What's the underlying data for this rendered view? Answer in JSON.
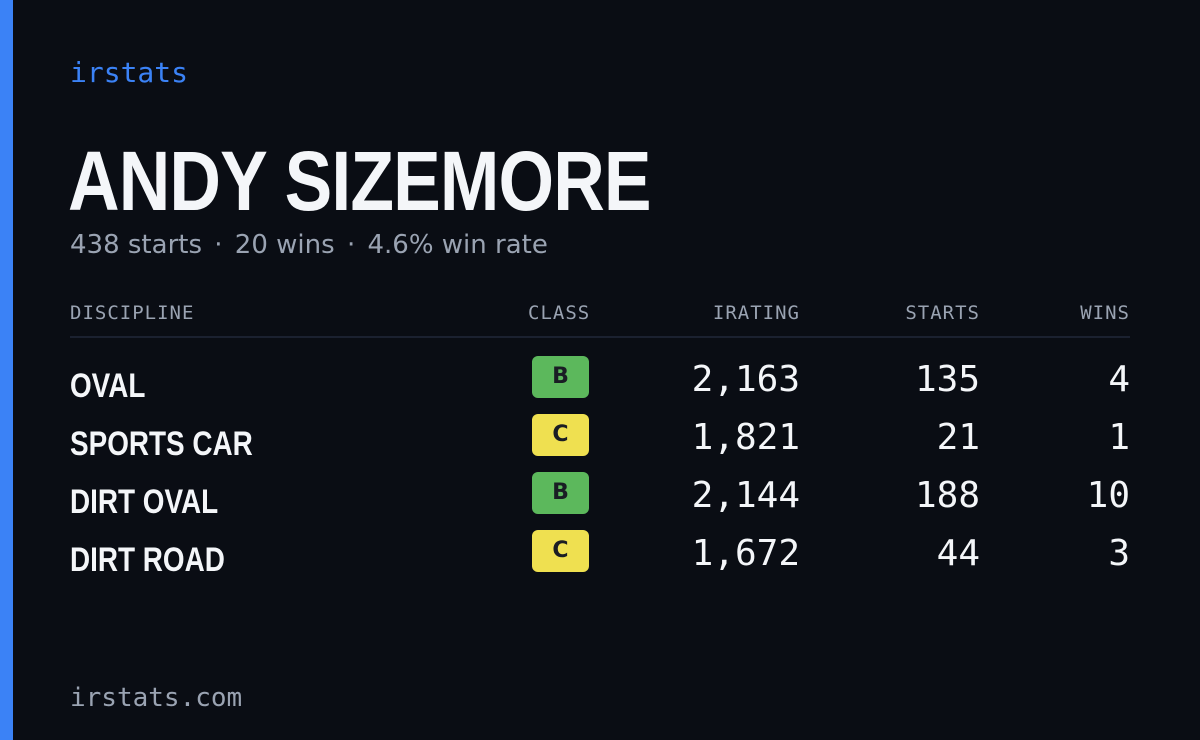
{
  "brand": "irstats",
  "player": {
    "name": "ANDY SIZEMORE",
    "starts": "438 starts",
    "wins": "20 wins",
    "win_rate": "4.6% win rate",
    "separator": "·"
  },
  "table": {
    "headers": {
      "discipline": "DISCIPLINE",
      "class": "CLASS",
      "irating": "IRATING",
      "starts": "STARTS",
      "wins": "WINS"
    },
    "rows": [
      {
        "discipline": "OVAL",
        "class": "B",
        "irating": "2,163",
        "starts": "135",
        "wins": "4"
      },
      {
        "discipline": "SPORTS CAR",
        "class": "C",
        "irating": "1,821",
        "starts": "21",
        "wins": "1"
      },
      {
        "discipline": "DIRT OVAL",
        "class": "B",
        "irating": "2,144",
        "starts": "188",
        "wins": "10"
      },
      {
        "discipline": "DIRT ROAD",
        "class": "C",
        "irating": "1,672",
        "starts": "44",
        "wins": "3"
      }
    ]
  },
  "class_colors": {
    "B": "#5cb85c",
    "C": "#efe050"
  },
  "colors": {
    "accent": "#3b82f6",
    "background": "#0a0d14"
  },
  "footer": "irstats.com"
}
